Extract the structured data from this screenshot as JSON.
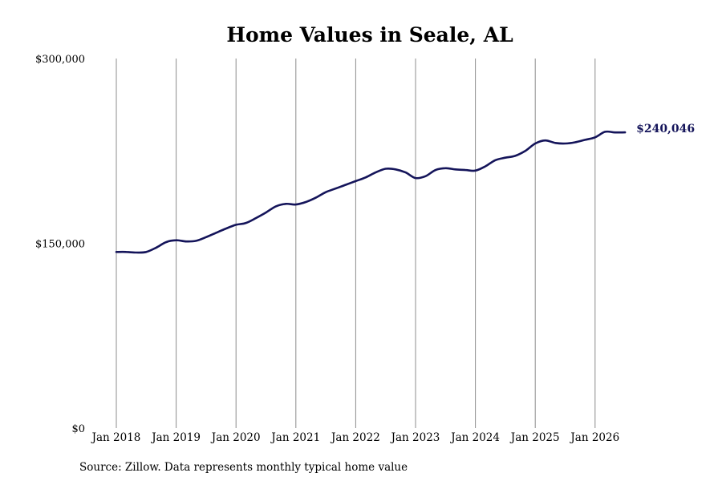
{
  "chart_data": {
    "type": "line",
    "title": "Home Values in Seale, AL",
    "xlabel": "",
    "ylabel": "",
    "ylim": [
      0,
      300000
    ],
    "yticks": [
      {
        "value": 0,
        "label": "$0"
      },
      {
        "value": 150000,
        "label": "$150,000"
      },
      {
        "value": 300000,
        "label": "$300,000"
      }
    ],
    "xticks": [
      {
        "value": "2018-01",
        "label": "Jan 2018"
      },
      {
        "value": "2019-01",
        "label": "Jan 2019"
      },
      {
        "value": "2020-01",
        "label": "Jan 2020"
      },
      {
        "value": "2021-01",
        "label": "Jan 2021"
      },
      {
        "value": "2022-01",
        "label": "Jan 2022"
      },
      {
        "value": "2023-01",
        "label": "Jan 2023"
      },
      {
        "value": "2024-01",
        "label": "Jan 2024"
      },
      {
        "value": "2025-01",
        "label": "Jan 2025"
      },
      {
        "value": "2026-01",
        "label": "Jan 2026"
      }
    ],
    "grid": "vertical",
    "series": [
      {
        "color": "#14145a",
        "points": [
          [
            "2018-01",
            143000
          ],
          [
            "2018-03",
            143000
          ],
          [
            "2018-05",
            142500
          ],
          [
            "2018-07",
            143000
          ],
          [
            "2018-09",
            146500
          ],
          [
            "2018-11",
            151000
          ],
          [
            "2019-01",
            152500
          ],
          [
            "2019-03",
            151500
          ],
          [
            "2019-05",
            152000
          ],
          [
            "2019-07",
            155000
          ],
          [
            "2019-09",
            158500
          ],
          [
            "2019-11",
            162000
          ],
          [
            "2020-01",
            165000
          ],
          [
            "2020-03",
            166500
          ],
          [
            "2020-05",
            170500
          ],
          [
            "2020-07",
            175000
          ],
          [
            "2020-09",
            180000
          ],
          [
            "2020-11",
            182000
          ],
          [
            "2021-01",
            181500
          ],
          [
            "2021-03",
            183500
          ],
          [
            "2021-05",
            187000
          ],
          [
            "2021-07",
            191500
          ],
          [
            "2021-09",
            194500
          ],
          [
            "2021-11",
            197500
          ],
          [
            "2022-01",
            200500
          ],
          [
            "2022-03",
            203500
          ],
          [
            "2022-05",
            207500
          ],
          [
            "2022-07",
            210500
          ],
          [
            "2022-09",
            210000
          ],
          [
            "2022-11",
            207500
          ],
          [
            "2023-01",
            203000
          ],
          [
            "2023-03",
            204500
          ],
          [
            "2023-05",
            209500
          ],
          [
            "2023-07",
            211000
          ],
          [
            "2023-09",
            210000
          ],
          [
            "2023-11",
            209500
          ],
          [
            "2024-01",
            209000
          ],
          [
            "2024-03",
            212500
          ],
          [
            "2024-05",
            217500
          ],
          [
            "2024-07",
            219500
          ],
          [
            "2024-09",
            221000
          ],
          [
            "2024-11",
            225000
          ],
          [
            "2025-01",
            231000
          ],
          [
            "2025-03",
            233500
          ],
          [
            "2025-05",
            231500
          ],
          [
            "2025-07",
            231000
          ],
          [
            "2025-09",
            232000
          ],
          [
            "2025-11",
            234000
          ],
          [
            "2026-01",
            236000
          ],
          [
            "2026-03",
            240500
          ],
          [
            "2026-05",
            240000
          ],
          [
            "2026-07",
            240046
          ]
        ]
      }
    ],
    "end_label": {
      "text": "$240,046",
      "color": "#14145a"
    },
    "source_note": "Source: Zillow. Data represents monthly typical home value"
  }
}
